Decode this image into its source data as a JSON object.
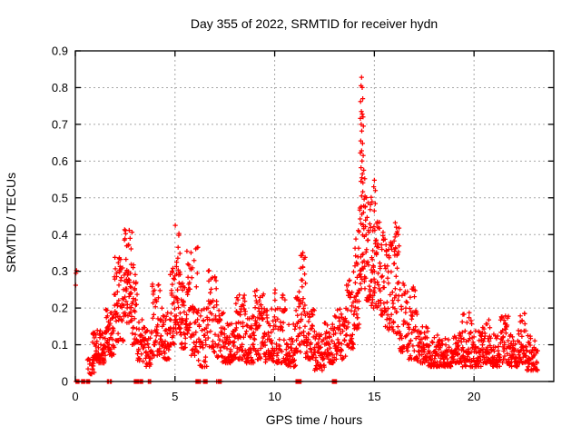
{
  "chart_data": {
    "type": "scatter",
    "title": "Day 355 of 2022, SRMTID for receiver hydn",
    "xlabel": "GPS time / hours",
    "ylabel": "SRMTID / TECUs",
    "xlim": [
      0,
      24
    ],
    "ylim": [
      0,
      0.9
    ],
    "xticks": [
      {
        "v": 0,
        "label": "0"
      },
      {
        "v": 5,
        "label": "5"
      },
      {
        "v": 10,
        "label": "10"
      },
      {
        "v": 15,
        "label": "15"
      },
      {
        "v": 20,
        "label": "20"
      }
    ],
    "yticks": [
      {
        "v": 0,
        "label": "0"
      },
      {
        "v": 0.1,
        "label": "0.1"
      },
      {
        "v": 0.2,
        "label": "0.2"
      },
      {
        "v": 0.3,
        "label": "0.3"
      },
      {
        "v": 0.4,
        "label": "0.4"
      },
      {
        "v": 0.5,
        "label": "0.5"
      },
      {
        "v": 0.6,
        "label": "0.6"
      },
      {
        "v": 0.7,
        "label": "0.7"
      },
      {
        "v": 0.8,
        "label": "0.8"
      },
      {
        "v": 0.9,
        "label": "0.9"
      }
    ],
    "grid": true,
    "legend": "none",
    "marker": "plus",
    "marker_color": "#ff0000",
    "grid_color": "#a8a8a8",
    "border_color": "#000000",
    "background_color": "#ffffff",
    "seed": 42,
    "series": [
      {
        "name": "SRMTID",
        "density_bins": [
          [
            0.6,
            0.95,
            0.02,
            0.07,
            16
          ],
          [
            0.85,
            1.5,
            0.05,
            0.14,
            75
          ],
          [
            1.5,
            1.95,
            0.07,
            0.2,
            50
          ],
          [
            1.95,
            2.45,
            0.11,
            0.34,
            60
          ],
          [
            2.45,
            2.85,
            0.16,
            0.42,
            55
          ],
          [
            2.85,
            3.1,
            0.1,
            0.34,
            30
          ],
          [
            3.1,
            3.5,
            0.05,
            0.17,
            35
          ],
          [
            3.5,
            3.85,
            0.04,
            0.14,
            32
          ],
          [
            3.85,
            4.35,
            0.07,
            0.27,
            50
          ],
          [
            4.35,
            4.75,
            0.06,
            0.19,
            40
          ],
          [
            4.75,
            5.0,
            0.1,
            0.31,
            30
          ],
          [
            5.0,
            5.3,
            0.13,
            0.44,
            40
          ],
          [
            5.3,
            5.55,
            0.09,
            0.28,
            28
          ],
          [
            5.55,
            5.8,
            0.12,
            0.36,
            30
          ],
          [
            5.8,
            6.15,
            0.07,
            0.37,
            38
          ],
          [
            6.15,
            6.65,
            0.04,
            0.2,
            40
          ],
          [
            6.65,
            7.1,
            0.08,
            0.31,
            40
          ],
          [
            7.1,
            7.5,
            0.05,
            0.2,
            35
          ],
          [
            7.5,
            8.0,
            0.05,
            0.16,
            52
          ],
          [
            8.0,
            8.55,
            0.06,
            0.24,
            55
          ],
          [
            8.55,
            9.0,
            0.05,
            0.18,
            48
          ],
          [
            9.0,
            9.5,
            0.06,
            0.25,
            55
          ],
          [
            9.5,
            10.0,
            0.05,
            0.2,
            50
          ],
          [
            10.0,
            10.55,
            0.05,
            0.25,
            52
          ],
          [
            10.55,
            11.05,
            0.04,
            0.16,
            46
          ],
          [
            11.05,
            11.3,
            0.08,
            0.25,
            25
          ],
          [
            11.3,
            11.55,
            0.1,
            0.37,
            30
          ],
          [
            11.55,
            12.0,
            0.06,
            0.2,
            42
          ],
          [
            12.0,
            12.5,
            0.03,
            0.13,
            46
          ],
          [
            12.5,
            13.0,
            0.05,
            0.17,
            46
          ],
          [
            13.0,
            13.6,
            0.06,
            0.2,
            52
          ],
          [
            13.6,
            14.0,
            0.09,
            0.3,
            42
          ],
          [
            14.0,
            14.25,
            0.14,
            0.46,
            35
          ],
          [
            14.25,
            14.55,
            0.25,
            0.56,
            42
          ],
          [
            14.55,
            14.85,
            0.22,
            0.52,
            36
          ],
          [
            14.85,
            15.15,
            0.2,
            0.5,
            36
          ],
          [
            15.15,
            15.55,
            0.18,
            0.44,
            40
          ],
          [
            15.55,
            15.95,
            0.14,
            0.38,
            40
          ],
          [
            15.95,
            16.25,
            0.13,
            0.42,
            34
          ],
          [
            16.25,
            16.7,
            0.08,
            0.28,
            40
          ],
          [
            16.7,
            17.15,
            0.06,
            0.27,
            40
          ],
          [
            17.15,
            17.7,
            0.05,
            0.15,
            50
          ],
          [
            17.7,
            18.3,
            0.04,
            0.13,
            56
          ],
          [
            18.3,
            18.9,
            0.04,
            0.12,
            56
          ],
          [
            18.9,
            19.4,
            0.05,
            0.14,
            50
          ],
          [
            19.4,
            19.9,
            0.04,
            0.19,
            50
          ],
          [
            19.9,
            20.4,
            0.04,
            0.14,
            46
          ],
          [
            20.4,
            20.8,
            0.05,
            0.17,
            40
          ],
          [
            20.8,
            21.3,
            0.04,
            0.13,
            46
          ],
          [
            21.3,
            21.75,
            0.05,
            0.18,
            44
          ],
          [
            21.75,
            22.2,
            0.04,
            0.13,
            44
          ],
          [
            22.2,
            22.65,
            0.05,
            0.19,
            44
          ],
          [
            22.65,
            23.2,
            0.03,
            0.13,
            48
          ]
        ],
        "zero_runs": [
          [
            0.02,
            0.2,
            8
          ],
          [
            0.3,
            0.48,
            7
          ],
          [
            0.55,
            0.72,
            6
          ],
          [
            1.6,
            1.68,
            3
          ],
          [
            1.74,
            1.82,
            3
          ],
          [
            2.95,
            3.2,
            8
          ],
          [
            3.24,
            3.38,
            4
          ],
          [
            3.66,
            3.8,
            4
          ],
          [
            6.02,
            6.3,
            8
          ],
          [
            6.4,
            6.62,
            6
          ],
          [
            7.08,
            7.35,
            6
          ],
          [
            11.05,
            11.35,
            8
          ],
          [
            12.88,
            13.1,
            8
          ]
        ],
        "points": [
          [
            0.02,
            0.262
          ],
          [
            0.03,
            0.295
          ],
          [
            0.06,
            0.302
          ],
          [
            14.36,
            0.828
          ],
          [
            14.33,
            0.805
          ],
          [
            14.39,
            0.8
          ],
          [
            14.42,
            0.77
          ],
          [
            14.31,
            0.762
          ],
          [
            14.35,
            0.735
          ],
          [
            14.39,
            0.728
          ],
          [
            14.43,
            0.72
          ],
          [
            14.3,
            0.716
          ],
          [
            14.34,
            0.7
          ],
          [
            14.45,
            0.695
          ],
          [
            14.37,
            0.682
          ],
          [
            14.32,
            0.655
          ],
          [
            14.41,
            0.648
          ],
          [
            14.36,
            0.628
          ],
          [
            14.3,
            0.622
          ],
          [
            14.44,
            0.615
          ],
          [
            14.38,
            0.6
          ],
          [
            14.33,
            0.582
          ],
          [
            14.47,
            0.575
          ],
          [
            14.4,
            0.565
          ],
          [
            14.52,
            0.552
          ],
          [
            15.0,
            0.548
          ],
          [
            14.97,
            0.53
          ],
          [
            15.05,
            0.52
          ],
          [
            16.05,
            0.432
          ],
          [
            16.1,
            0.42
          ]
        ]
      }
    ]
  }
}
